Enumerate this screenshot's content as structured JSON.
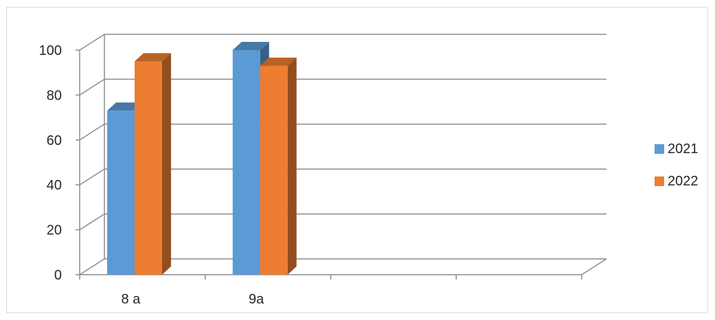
{
  "chart_data": {
    "type": "bar",
    "categories": [
      "8 а",
      "9а",
      "",
      ""
    ],
    "series": [
      {
        "name": "2021",
        "values": [
          73,
          100,
          null,
          null
        ],
        "color": "#5b9bd5"
      },
      {
        "name": "2022",
        "values": [
          95,
          93,
          null,
          null
        ],
        "color": "#ed7d31"
      }
    ],
    "title": "",
    "xlabel": "",
    "ylabel": "",
    "ylim": [
      0,
      100
    ],
    "yticks": [
      0,
      20,
      40,
      60,
      80,
      100
    ],
    "grid": true,
    "style": "3d-clustered-column",
    "legend_position": "right"
  }
}
